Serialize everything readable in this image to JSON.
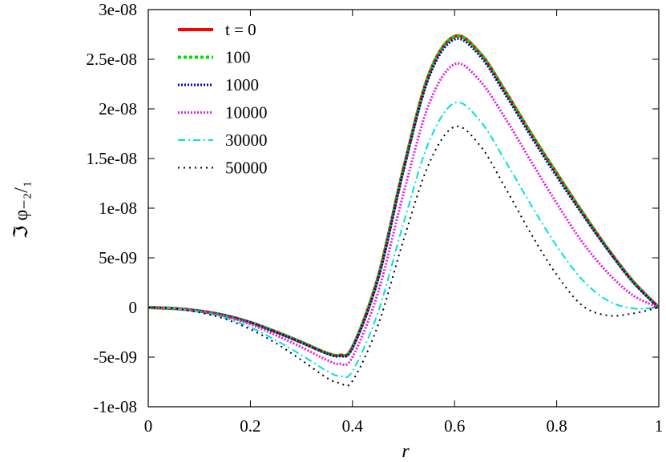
{
  "chart_data": {
    "type": "line",
    "title": "",
    "xlabel": "r",
    "ylabel": "ℑ φ₋₂/₁",
    "xlim": [
      0,
      1
    ],
    "ylim": [
      -1e-08,
      3e-08
    ],
    "grid": false,
    "legend_position": "top-left",
    "x_ticks": [
      {
        "value": 0,
        "label": "0"
      },
      {
        "value": 0.2,
        "label": "0.2"
      },
      {
        "value": 0.4,
        "label": "0.4"
      },
      {
        "value": 0.6,
        "label": "0.6"
      },
      {
        "value": 0.8,
        "label": "0.8"
      },
      {
        "value": 1,
        "label": "1"
      }
    ],
    "y_ticks": [
      {
        "value": -1e-08,
        "label": "-1e-08"
      },
      {
        "value": -5e-09,
        "label": "-5e-09"
      },
      {
        "value": 0,
        "label": "0"
      },
      {
        "value": 5e-09,
        "label": "5e-09"
      },
      {
        "value": 1e-08,
        "label": "1e-08"
      },
      {
        "value": 1.5e-08,
        "label": "1.5e-08"
      },
      {
        "value": 2e-08,
        "label": "2e-08"
      },
      {
        "value": 2.5e-08,
        "label": "2.5e-08"
      },
      {
        "value": 3e-08,
        "label": "3e-08"
      }
    ],
    "x": [
      0,
      0.05,
      0.1,
      0.15,
      0.2,
      0.25,
      0.3,
      0.35,
      0.375,
      0.4,
      0.45,
      0.5,
      0.55,
      0.6,
      0.65,
      0.7,
      0.75,
      0.8,
      0.85,
      0.9,
      0.95,
      1.0
    ],
    "series": [
      {
        "name": "t = 0",
        "color": "#ff0000",
        "dash": "solid",
        "values": [
          0,
          -1e-10,
          -3.5e-10,
          -8e-10,
          -1.5e-09,
          -2.45e-09,
          -3.5e-09,
          -4.6e-09,
          -4.8e-09,
          -4e-09,
          3e-09,
          1.4e-08,
          2.35e-08,
          2.73e-08,
          2.56e-08,
          2.17e-08,
          1.75e-08,
          1.35e-08,
          9.6e-09,
          5.9e-09,
          2.6e-09,
          0
        ]
      },
      {
        "name": "100",
        "color": "#00e000",
        "dash": "dashed",
        "values": [
          0,
          -1e-10,
          -3.5e-10,
          -8e-10,
          -1.5e-09,
          -2.45e-09,
          -3.5e-09,
          -4.6e-09,
          -4.8e-09,
          -4e-09,
          3e-09,
          1.4e-08,
          2.35e-08,
          2.73e-08,
          2.56e-08,
          2.17e-08,
          1.75e-08,
          1.35e-08,
          9.6e-09,
          5.9e-09,
          2.6e-09,
          0
        ]
      },
      {
        "name": "1000",
        "color": "#0000cc",
        "dash": "dotted",
        "values": [
          0,
          -1e-10,
          -3.5e-10,
          -8e-10,
          -1.52e-09,
          -2.5e-09,
          -3.55e-09,
          -4.65e-09,
          -4.9e-09,
          -4.1e-09,
          2.8e-09,
          1.38e-08,
          2.32e-08,
          2.7e-08,
          2.53e-08,
          2.14e-08,
          1.72e-08,
          1.32e-08,
          9.4e-09,
          5.8e-09,
          2.5e-09,
          0
        ]
      },
      {
        "name": "10000",
        "color": "#e020e0",
        "dash": "dotted",
        "values": [
          0,
          -1e-10,
          -4e-10,
          -9e-10,
          -1.7e-09,
          -2.8e-09,
          -4e-09,
          -5.3e-09,
          -5.7e-09,
          -5e-09,
          1.5e-09,
          1.15e-08,
          2.05e-08,
          2.45e-08,
          2.28e-08,
          1.9e-08,
          1.47e-08,
          1.05e-08,
          6.6e-09,
          3.5e-09,
          1.2e-09,
          0
        ]
      },
      {
        "name": "30000",
        "color": "#00e0e0",
        "dash": "dashdot",
        "values": [
          0,
          -1e-10,
          -4.5e-10,
          -1.05e-09,
          -2e-09,
          -3.3e-09,
          -4.8e-09,
          -6.4e-09,
          -6.9e-09,
          -6.4e-09,
          -5e-10,
          8.5e-09,
          1.67e-08,
          2.06e-08,
          1.88e-08,
          1.47e-08,
          1.03e-08,
          6.2e-09,
          2.8e-09,
          7e-10,
          -1e-10,
          0
        ]
      },
      {
        "name": "50000",
        "color": "#000000",
        "dash": "sparse-dotted",
        "values": [
          0,
          -1e-10,
          -5e-10,
          -1.15e-09,
          -2.2e-09,
          -3.6e-09,
          -5.3e-09,
          -7.1e-09,
          -7.6e-09,
          -7.4e-09,
          -1.8e-09,
          6.8e-09,
          1.45e-08,
          1.82e-08,
          1.63e-08,
          1.2e-08,
          7.4e-09,
          3.3e-09,
          2e-10,
          -8e-10,
          -6e-10,
          0
        ]
      }
    ]
  }
}
